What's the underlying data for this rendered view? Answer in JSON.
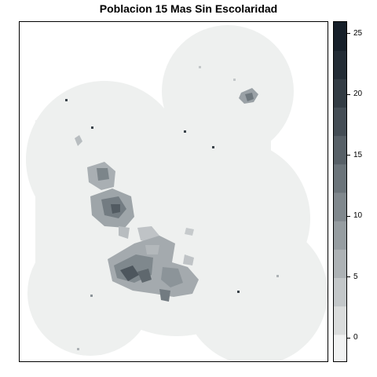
{
  "title": "Poblacion 15 Mas Sin Escolaridad",
  "legend": {
    "min": -2,
    "max": 26,
    "ticks": [
      0,
      5,
      10,
      15,
      20,
      25
    ],
    "colors": [
      "#f1f2f2",
      "#dadcdc",
      "#c3c7c9",
      "#adb2b5",
      "#969da1",
      "#80888d",
      "#6b747a",
      "#576067",
      "#444d55",
      "#333c44",
      "#232c35",
      "#161f29"
    ]
  },
  "map_data": {
    "background_value": 0,
    "background_color": "#eef0ef",
    "clusters": [
      {
        "name": "northeast-cluster",
        "value": 6
      },
      {
        "name": "upper-west-cluster",
        "value": 5
      },
      {
        "name": "central-cluster",
        "value": 7
      },
      {
        "name": "south-central-cluster",
        "value": 9
      }
    ]
  }
}
